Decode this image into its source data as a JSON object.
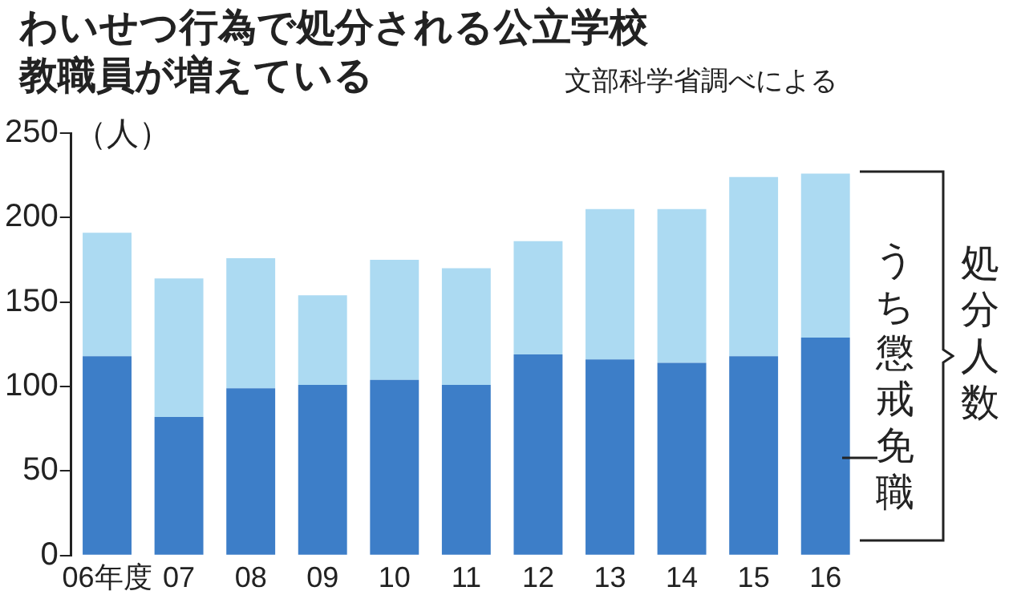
{
  "chart_data": {
    "type": "bar",
    "title": "わいせつ行為で処分される公立学校教職員が増えている",
    "subtitle": "文部科学省調べによる",
    "ylabel": "（人）",
    "categories": [
      "06年度",
      "07",
      "08",
      "09",
      "10",
      "11",
      "12",
      "13",
      "14",
      "15",
      "16"
    ],
    "stacked": true,
    "series": [
      {
        "name": "うち懲戒免職",
        "color": "#3d7ec8",
        "values": [
          118,
          82,
          99,
          101,
          104,
          101,
          119,
          116,
          114,
          118,
          129
        ]
      },
      {
        "name": "処分人数",
        "color": "#acdaf2",
        "values": [
          73,
          82,
          77,
          53,
          71,
          69,
          67,
          89,
          91,
          106,
          97
        ]
      }
    ],
    "ylim": [
      0,
      250
    ],
    "yticks": [
      0,
      50,
      100,
      150,
      200,
      250
    ],
    "grid": false,
    "legend": false
  }
}
